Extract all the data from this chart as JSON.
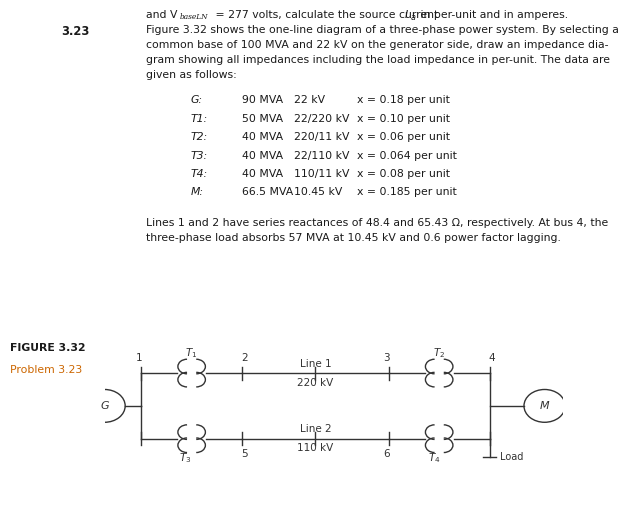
{
  "problem_num": "3.23",
  "line0": "and V",
  "line0_sub": "baseLN",
  "line0_rest": " = 277 volts, calculate the source current ",
  "line0_I": "I",
  "line0_a": "a",
  "line0_end": " in per-unit and in amperes.",
  "problem_lines": [
    "Figure 3.32 shows the one-line diagram of a three-phase power system. By selecting a",
    "common base of 100 MVA and 22 kV on the generator side, draw an impedance dia-",
    "gram showing all impedances including the load impedance in per-unit. The data are",
    "given as follows:"
  ],
  "table_rows": [
    [
      "G:",
      "90 MVA",
      "22 kV",
      "x = 0.18 per unit"
    ],
    [
      "T1:",
      "50 MVA",
      "22/220 kV",
      "x = 0.10 per unit"
    ],
    [
      "T2:",
      "40 MVA",
      "220/11 kV",
      "x = 0.06 per unit"
    ],
    [
      "T3:",
      "40 MVA",
      "22/110 kV",
      "x = 0.064 per unit"
    ],
    [
      "T4:",
      "40 MVA",
      "110/11 kV",
      "x = 0.08 per unit"
    ],
    [
      "M:",
      "66.5 MVA",
      "10.45 kV",
      "x = 0.185 per unit"
    ]
  ],
  "lines_text_1": "Lines 1 and 2 have series reactances of 48.4 and 65.43 Ω, respectively. At bus 4, the",
  "lines_text_2": "three-phase load absorbs 57 MVA at 10.45 kV and 0.6 power factor lagging.",
  "figure_label": "FIGURE 3.32",
  "problem_label": "Problem 3.23",
  "bg_color": "#ffffff",
  "text_color": "#1a1a1a",
  "orange_color": "#cc6600",
  "diagram_color": "#333333"
}
